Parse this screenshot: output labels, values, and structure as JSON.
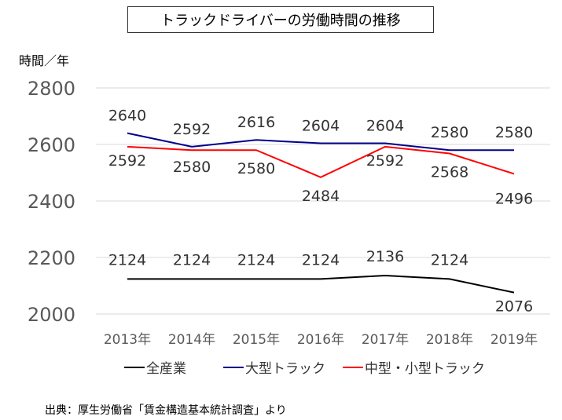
{
  "chart_data": {
    "type": "line",
    "title": "トラックドライバーの労働時間の推移",
    "ylabel": "時間／年",
    "xlabel": "",
    "categories": [
      "2013年",
      "2014年",
      "2015年",
      "2016年",
      "2017年",
      "2018年",
      "2019年"
    ],
    "ylim": [
      2000,
      2800
    ],
    "yticks": [
      "2000",
      "2200",
      "2400",
      "2600",
      "2800"
    ],
    "grid": true,
    "legend_position": "bottom",
    "series": [
      {
        "name": "全産業",
        "color": "#000000",
        "values": [
          2124,
          2124,
          2124,
          2124,
          2136,
          2124,
          2076
        ]
      },
      {
        "name": "大型トラック",
        "color": "#00008b",
        "values": [
          2640,
          2592,
          2616,
          2604,
          2604,
          2580,
          2580
        ]
      },
      {
        "name": "中型・小型トラック",
        "color": "#ff0000",
        "values": [
          2592,
          2580,
          2580,
          2484,
          2592,
          2568,
          2496
        ]
      }
    ],
    "source": "出典：厚生労働省「賃金構造基本統計調査」より"
  }
}
